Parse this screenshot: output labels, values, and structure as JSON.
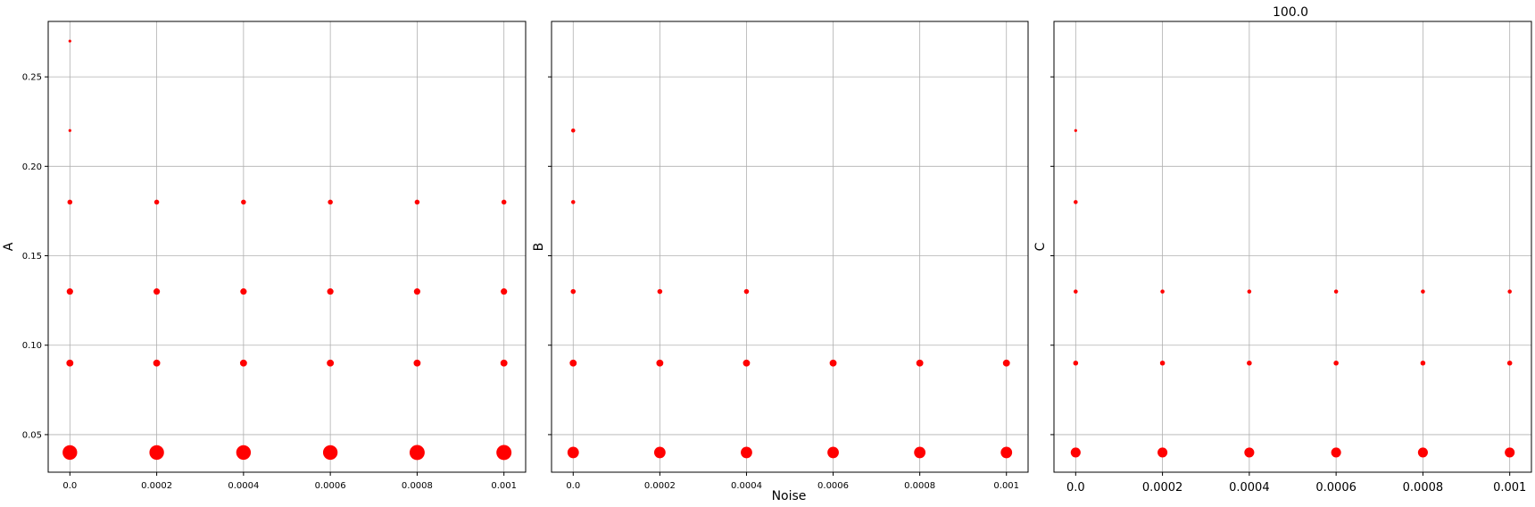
{
  "figure": {
    "suptitle": "100.0",
    "shared_xlabel": "Noise",
    "marker_color": "#ff0000"
  },
  "chart_data": [
    {
      "type": "scatter",
      "ylabel": "A",
      "xlabel": "",
      "grid": true,
      "xlim": [
        -5e-05,
        0.00105
      ],
      "ylim": [
        0.029,
        0.281
      ],
      "xticks": [
        "0.0",
        "0.0002",
        "0.0004",
        "0.0006",
        "0.0008",
        "0.001"
      ],
      "xtick_values": [
        0,
        0.0002,
        0.0004,
        0.0006,
        0.0008,
        0.001
      ],
      "yticks": [
        "0.05",
        "0.10",
        "0.15",
        "0.20",
        "0.25"
      ],
      "ytick_values": [
        0.05,
        0.1,
        0.15,
        0.2,
        0.25
      ],
      "points": [
        {
          "x": 0,
          "y": 0.27,
          "size": 1
        },
        {
          "x": 0,
          "y": 0.22,
          "size": 1
        },
        {
          "x": 0,
          "y": 0.18,
          "size": 3
        },
        {
          "x": 0.0002,
          "y": 0.18,
          "size": 3
        },
        {
          "x": 0.0004,
          "y": 0.18,
          "size": 3
        },
        {
          "x": 0.0006,
          "y": 0.18,
          "size": 3
        },
        {
          "x": 0.0008,
          "y": 0.18,
          "size": 3
        },
        {
          "x": 0.001,
          "y": 0.18,
          "size": 3
        },
        {
          "x": 0,
          "y": 0.13,
          "size": 5
        },
        {
          "x": 0.0002,
          "y": 0.13,
          "size": 5
        },
        {
          "x": 0.0004,
          "y": 0.13,
          "size": 5
        },
        {
          "x": 0.0006,
          "y": 0.13,
          "size": 5
        },
        {
          "x": 0.0008,
          "y": 0.13,
          "size": 5
        },
        {
          "x": 0.001,
          "y": 0.13,
          "size": 5
        },
        {
          "x": 0,
          "y": 0.09,
          "size": 6
        },
        {
          "x": 0.0002,
          "y": 0.09,
          "size": 6
        },
        {
          "x": 0.0004,
          "y": 0.09,
          "size": 6
        },
        {
          "x": 0.0006,
          "y": 0.09,
          "size": 6
        },
        {
          "x": 0.0008,
          "y": 0.09,
          "size": 6
        },
        {
          "x": 0.001,
          "y": 0.09,
          "size": 6
        },
        {
          "x": 0,
          "y": 0.04,
          "size": 26
        },
        {
          "x": 0.0002,
          "y": 0.04,
          "size": 26
        },
        {
          "x": 0.0004,
          "y": 0.04,
          "size": 26
        },
        {
          "x": 0.0006,
          "y": 0.04,
          "size": 26
        },
        {
          "x": 0.0008,
          "y": 0.04,
          "size": 28
        },
        {
          "x": 0.001,
          "y": 0.04,
          "size": 28
        }
      ]
    },
    {
      "type": "scatter",
      "ylabel": "B",
      "xlabel": "",
      "grid": true,
      "xlim": [
        -5e-05,
        0.00105
      ],
      "ylim": [
        0.029,
        0.281
      ],
      "xticks": [
        "0.0",
        "0.0002",
        "0.0004",
        "0.0006",
        "0.0008",
        "0.001"
      ],
      "xtick_values": [
        0,
        0.0002,
        0.0004,
        0.0006,
        0.0008,
        0.001
      ],
      "yticks": [],
      "ytick_values": [
        0.05,
        0.1,
        0.15,
        0.2,
        0.25
      ],
      "points": [
        {
          "x": 0,
          "y": 0.22,
          "size": 2
        },
        {
          "x": 0,
          "y": 0.18,
          "size": 2
        },
        {
          "x": 0,
          "y": 0.13,
          "size": 3
        },
        {
          "x": 0.0002,
          "y": 0.13,
          "size": 3
        },
        {
          "x": 0.0004,
          "y": 0.13,
          "size": 3
        },
        {
          "x": 0,
          "y": 0.09,
          "size": 6
        },
        {
          "x": 0.0002,
          "y": 0.09,
          "size": 6
        },
        {
          "x": 0.0004,
          "y": 0.09,
          "size": 6
        },
        {
          "x": 0.0006,
          "y": 0.09,
          "size": 6
        },
        {
          "x": 0.0008,
          "y": 0.09,
          "size": 6
        },
        {
          "x": 0.001,
          "y": 0.09,
          "size": 6
        },
        {
          "x": 0,
          "y": 0.04,
          "size": 16
        },
        {
          "x": 0.0002,
          "y": 0.04,
          "size": 16
        },
        {
          "x": 0.0004,
          "y": 0.04,
          "size": 16
        },
        {
          "x": 0.0006,
          "y": 0.04,
          "size": 16
        },
        {
          "x": 0.0008,
          "y": 0.04,
          "size": 16
        },
        {
          "x": 0.001,
          "y": 0.04,
          "size": 16
        }
      ]
    },
    {
      "type": "scatter",
      "ylabel": "C",
      "xlabel": "",
      "grid": true,
      "xlim": [
        -5e-05,
        0.00105
      ],
      "ylim": [
        0.029,
        0.281
      ],
      "xticks": [
        "0.0",
        "0.0002",
        "0.0004",
        "0.0006",
        "0.0008",
        "0.001"
      ],
      "xtick_values": [
        0,
        0.0002,
        0.0004,
        0.0006,
        0.0008,
        0.001
      ],
      "yticks": [],
      "ytick_values": [
        0.05,
        0.1,
        0.15,
        0.2,
        0.25
      ],
      "points": [
        {
          "x": 0,
          "y": 0.22,
          "size": 1
        },
        {
          "x": 0,
          "y": 0.18,
          "size": 2
        },
        {
          "x": 0,
          "y": 0.13,
          "size": 2
        },
        {
          "x": 0.0002,
          "y": 0.13,
          "size": 2
        },
        {
          "x": 0.0004,
          "y": 0.13,
          "size": 2
        },
        {
          "x": 0.0006,
          "y": 0.13,
          "size": 2
        },
        {
          "x": 0.0008,
          "y": 0.13,
          "size": 2
        },
        {
          "x": 0.001,
          "y": 0.13,
          "size": 2
        },
        {
          "x": 0,
          "y": 0.09,
          "size": 3
        },
        {
          "x": 0.0002,
          "y": 0.09,
          "size": 3
        },
        {
          "x": 0.0004,
          "y": 0.09,
          "size": 3
        },
        {
          "x": 0.0006,
          "y": 0.09,
          "size": 3
        },
        {
          "x": 0.0008,
          "y": 0.09,
          "size": 3
        },
        {
          "x": 0.001,
          "y": 0.09,
          "size": 3
        },
        {
          "x": 0,
          "y": 0.04,
          "size": 12
        },
        {
          "x": 0.0002,
          "y": 0.04,
          "size": 12
        },
        {
          "x": 0.0004,
          "y": 0.04,
          "size": 12
        },
        {
          "x": 0.0006,
          "y": 0.04,
          "size": 12
        },
        {
          "x": 0.0008,
          "y": 0.04,
          "size": 12
        },
        {
          "x": 0.001,
          "y": 0.04,
          "size": 12
        }
      ]
    }
  ]
}
